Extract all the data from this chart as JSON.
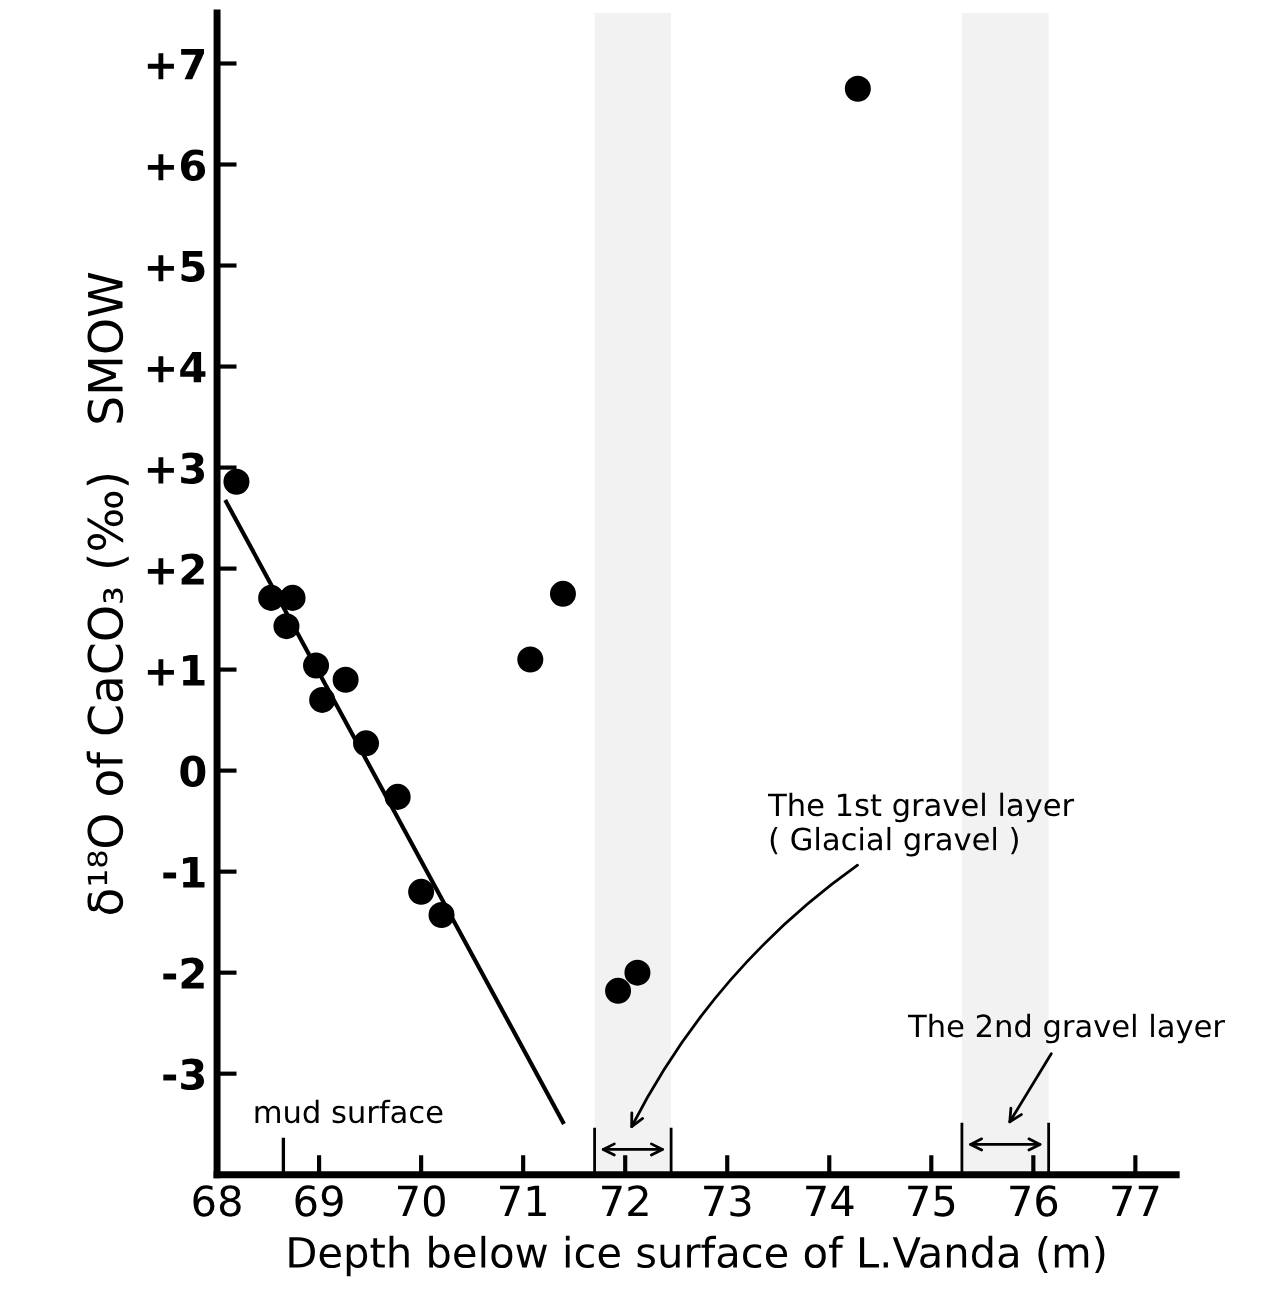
{
  "chart_data": {
    "type": "scatter",
    "xlabel": "Depth below ice surface of L.Vanda (m)",
    "ylabel": "δ¹⁸O of CaCO₃ (‰)   SMOW",
    "series": [
      {
        "color": "#000000",
        "marker": "circle",
        "x": [
          68.19,
          68.53,
          68.74,
          68.68,
          68.97,
          69.03,
          69.26,
          69.46,
          69.77,
          70.0,
          70.2,
          71.07,
          71.39,
          71.93,
          72.12,
          74.28
        ],
        "values": [
          2.86,
          1.71,
          1.71,
          1.43,
          1.04,
          0.7,
          0.9,
          0.27,
          -0.26,
          -1.2,
          -1.43,
          1.1,
          1.75,
          -2.18,
          -2.0,
          6.75
        ]
      },
      {
        "type": "line",
        "color": "#000000",
        "line_style": "solid",
        "x": [
          68.09,
          71.39
        ],
        "values": [
          2.66,
          -3.48
        ]
      }
    ],
    "xlim": [
      68,
      77.4
    ],
    "ylim": [
      -4,
      7.5
    ],
    "xticks": [
      68,
      69,
      70,
      71,
      72,
      73,
      74,
      75,
      76,
      77
    ],
    "yticks": [
      {
        "value": -3,
        "label": "-3"
      },
      {
        "value": -2,
        "label": "-2"
      },
      {
        "value": -1,
        "label": "-1"
      },
      0,
      {
        "value": 1,
        "label": "+1"
      },
      {
        "value": 2,
        "label": "+2"
      },
      {
        "value": 3,
        "label": "+3"
      },
      {
        "value": 4,
        "label": "+4"
      },
      {
        "value": 5,
        "label": "+5"
      },
      {
        "value": 6,
        "label": "+6"
      },
      {
        "value": 7,
        "label": "+7"
      }
    ],
    "ref_lines": [
      {
        "axis": "x",
        "value": 68.65,
        "label": "mud surface"
      }
    ],
    "bands": [
      {
        "axis": "x",
        "from": 71.7,
        "to": 72.45,
        "label": "The 1st gravel layer\n( Glacial gravel )",
        "color": "#f2f2f2"
      },
      {
        "axis": "x",
        "from": 75.3,
        "to": 76.15,
        "label": "The 2nd gravel layer",
        "color": "#f2f2f2"
      }
    ],
    "grid": false,
    "legend": false
  }
}
